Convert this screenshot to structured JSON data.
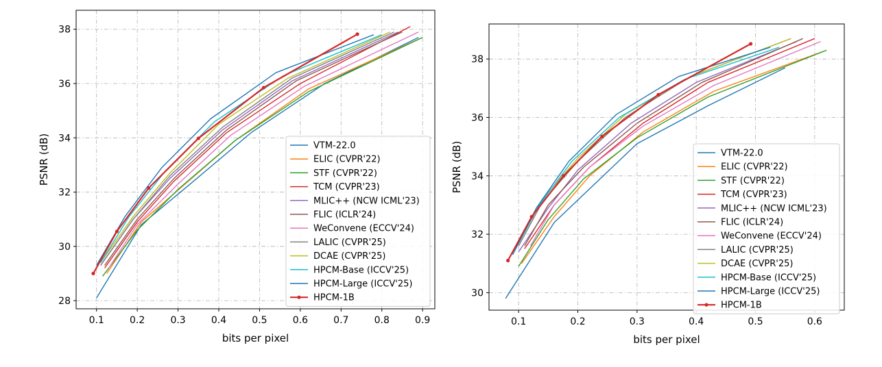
{
  "chart_data": [
    {
      "type": "line",
      "xlabel": "bits per pixel",
      "ylabel": "PSNR (dB)",
      "xlim": [
        0.05,
        0.93
      ],
      "ylim": [
        27.7,
        38.7
      ],
      "xticks": [
        0.1,
        0.2,
        0.3,
        0.4,
        0.5,
        0.6,
        0.7,
        0.8,
        0.9
      ],
      "xtick_labels": [
        "0.1",
        "0.2",
        "0.3",
        "0.4",
        "0.5",
        "0.6",
        "0.7",
        "0.8",
        "0.9"
      ],
      "yticks": [
        28,
        30,
        32,
        34,
        36,
        38
      ],
      "ytick_labels": [
        "28",
        "30",
        "32",
        "34",
        "36",
        "38"
      ],
      "grid": true,
      "legend_placement": "lower-right",
      "series": [
        {
          "name": "VTM-22.0",
          "color": "#1f77b4",
          "x": [
            0.1,
            0.21,
            0.33,
            0.48,
            0.66,
            0.89
          ],
          "y": [
            28.1,
            30.8,
            32.3,
            34.2,
            36.0,
            37.7
          ]
        },
        {
          "name": "ELIC (CVPR'22)",
          "color": "#ff7f0e",
          "x": [
            0.125,
            0.21,
            0.31,
            0.44,
            0.62,
            0.9
          ],
          "y": [
            29.0,
            30.9,
            32.2,
            33.9,
            35.8,
            37.7
          ]
        },
        {
          "name": "STF (CVPR'22)",
          "color": "#2ca02c",
          "x": [
            0.115,
            0.2,
            0.3,
            0.44,
            0.62,
            0.9
          ],
          "y": [
            28.9,
            30.6,
            32.1,
            33.9,
            35.7,
            37.7
          ]
        },
        {
          "name": "TCM (CVPR'23)",
          "color": "#d62728",
          "x": [
            0.12,
            0.2,
            0.29,
            0.42,
            0.6,
            0.87
          ],
          "y": [
            29.2,
            30.9,
            32.4,
            34.2,
            36.0,
            38.1
          ]
        },
        {
          "name": "MLIC++ (NCW ICML'23)",
          "color": "#9467bd",
          "x": [
            0.11,
            0.19,
            0.28,
            0.41,
            0.58,
            0.84
          ],
          "y": [
            29.3,
            31.0,
            32.5,
            34.3,
            36.1,
            37.9
          ]
        },
        {
          "name": "FLIC (ICLR'24)",
          "color": "#8c564b",
          "x": [
            0.12,
            0.2,
            0.29,
            0.42,
            0.59,
            0.85
          ],
          "y": [
            29.3,
            31.0,
            32.5,
            34.3,
            36.1,
            37.9
          ]
        },
        {
          "name": "WeConvene (ECCV'24)",
          "color": "#e377c2",
          "x": [
            0.13,
            0.2,
            0.3,
            0.43,
            0.61,
            0.89
          ],
          "y": [
            29.2,
            30.8,
            32.3,
            34.1,
            35.9,
            37.9
          ]
        },
        {
          "name": "LALIC (CVPR'25)",
          "color": "#7f7f7f",
          "x": [
            0.11,
            0.19,
            0.28,
            0.41,
            0.58,
            0.83
          ],
          "y": [
            29.3,
            31.0,
            32.6,
            34.4,
            36.2,
            37.9
          ]
        },
        {
          "name": "DCAE (CVPR'25)",
          "color": "#bcbd22",
          "x": [
            0.11,
            0.19,
            0.28,
            0.4,
            0.57,
            0.82
          ],
          "y": [
            29.4,
            31.1,
            32.7,
            34.5,
            36.2,
            37.9
          ]
        },
        {
          "name": "HPCM-Base (ICCV'25)",
          "color": "#17becf",
          "x": [
            0.11,
            0.18,
            0.27,
            0.39,
            0.56,
            0.8
          ],
          "y": [
            29.4,
            31.1,
            32.8,
            34.6,
            36.3,
            37.8
          ]
        },
        {
          "name": "HPCM-Large (ICCV'25)",
          "color": "#1f77b4",
          "x": [
            0.1,
            0.17,
            0.26,
            0.38,
            0.54,
            0.78
          ],
          "y": [
            29.3,
            31.1,
            32.9,
            34.7,
            36.4,
            37.8
          ]
        },
        {
          "name": "HPCM-1B",
          "color": "#d62728",
          "marker": true,
          "x": [
            0.092,
            0.15,
            0.228,
            0.35,
            0.51,
            0.74
          ],
          "y": [
            29.0,
            30.55,
            32.15,
            33.98,
            35.85,
            37.82
          ]
        }
      ]
    },
    {
      "type": "line",
      "xlabel": "bits per pixel",
      "ylabel": "PSNR (dB)",
      "xlim": [
        0.05,
        0.65
      ],
      "ylim": [
        29.4,
        39.2
      ],
      "xticks": [
        0.1,
        0.2,
        0.3,
        0.4,
        0.5,
        0.6
      ],
      "xtick_labels": [
        "0.1",
        "0.2",
        "0.3",
        "0.4",
        "0.5",
        "0.6"
      ],
      "yticks": [
        30,
        32,
        34,
        36,
        38
      ],
      "ytick_labels": [
        "30",
        "32",
        "34",
        "36",
        "38"
      ],
      "grid": true,
      "legend_placement": "lower-right",
      "series": [
        {
          "name": "VTM-22.0",
          "color": "#1f77b4",
          "x": [
            0.078,
            0.16,
            0.3,
            0.42,
            0.55
          ],
          "y": [
            29.8,
            32.4,
            35.1,
            36.4,
            37.7
          ]
        },
        {
          "name": "ELIC (CVPR'22)",
          "color": "#ff7f0e",
          "x": [
            0.105,
            0.16,
            0.22,
            0.31,
            0.43,
            0.62
          ],
          "y": [
            31.0,
            32.6,
            34.0,
            35.5,
            36.9,
            38.3
          ]
        },
        {
          "name": "STF (CVPR'22)",
          "color": "#2ca02c",
          "x": [
            0.1,
            0.15,
            0.21,
            0.3,
            0.42,
            0.62
          ],
          "y": [
            30.9,
            32.5,
            33.9,
            35.3,
            36.7,
            38.3
          ]
        },
        {
          "name": "TCM (CVPR'23)",
          "color": "#d62728",
          "x": [
            0.11,
            0.16,
            0.22,
            0.31,
            0.42,
            0.6
          ],
          "y": [
            31.5,
            33.0,
            34.3,
            35.8,
            37.2,
            38.7
          ]
        },
        {
          "name": "MLIC++ (NCW ICML'23)",
          "color": "#9467bd",
          "x": [
            0.1,
            0.15,
            0.2,
            0.29,
            0.4,
            0.57
          ],
          "y": [
            31.4,
            32.9,
            34.2,
            35.8,
            37.2,
            38.6
          ]
        },
        {
          "name": "FLIC (ICLR'24)",
          "color": "#8c564b",
          "x": [
            0.11,
            0.15,
            0.21,
            0.3,
            0.41,
            0.58
          ],
          "y": [
            31.6,
            33.0,
            34.3,
            35.8,
            37.2,
            38.7
          ]
        },
        {
          "name": "WeConvene (ECCV'24)",
          "color": "#e377c2",
          "x": [
            0.12,
            0.16,
            0.22,
            0.31,
            0.43,
            0.61
          ],
          "y": [
            31.6,
            33.0,
            34.3,
            35.7,
            37.1,
            38.6
          ]
        },
        {
          "name": "LALIC (CVPR'25)",
          "color": "#7f7f7f",
          "x": [
            0.1,
            0.14,
            0.2,
            0.28,
            0.39,
            0.56
          ],
          "y": [
            31.6,
            33.1,
            34.5,
            36.0,
            37.4,
            38.7
          ]
        },
        {
          "name": "DCAE (CVPR'25)",
          "color": "#bcbd22",
          "x": [
            0.1,
            0.14,
            0.2,
            0.28,
            0.39,
            0.56
          ],
          "y": [
            31.7,
            33.2,
            34.6,
            36.1,
            37.4,
            38.7
          ]
        },
        {
          "name": "HPCM-Base (ICCV'25)",
          "color": "#17becf",
          "x": [
            0.095,
            0.135,
            0.19,
            0.27,
            0.38,
            0.54
          ],
          "y": [
            31.5,
            33.0,
            34.5,
            36.0,
            37.3,
            38.4
          ]
        },
        {
          "name": "HPCM-Large (ICCV'25)",
          "color": "#1f77b4",
          "x": [
            0.09,
            0.13,
            0.185,
            0.265,
            0.37,
            0.525
          ],
          "y": [
            31.3,
            32.9,
            34.5,
            36.1,
            37.4,
            38.4
          ]
        },
        {
          "name": "HPCM-1B",
          "color": "#d62728",
          "marker": true,
          "x": [
            0.082,
            0.122,
            0.176,
            0.241,
            0.336,
            0.492
          ],
          "y": [
            31.1,
            32.6,
            34.0,
            35.35,
            36.78,
            38.52
          ]
        }
      ]
    }
  ]
}
